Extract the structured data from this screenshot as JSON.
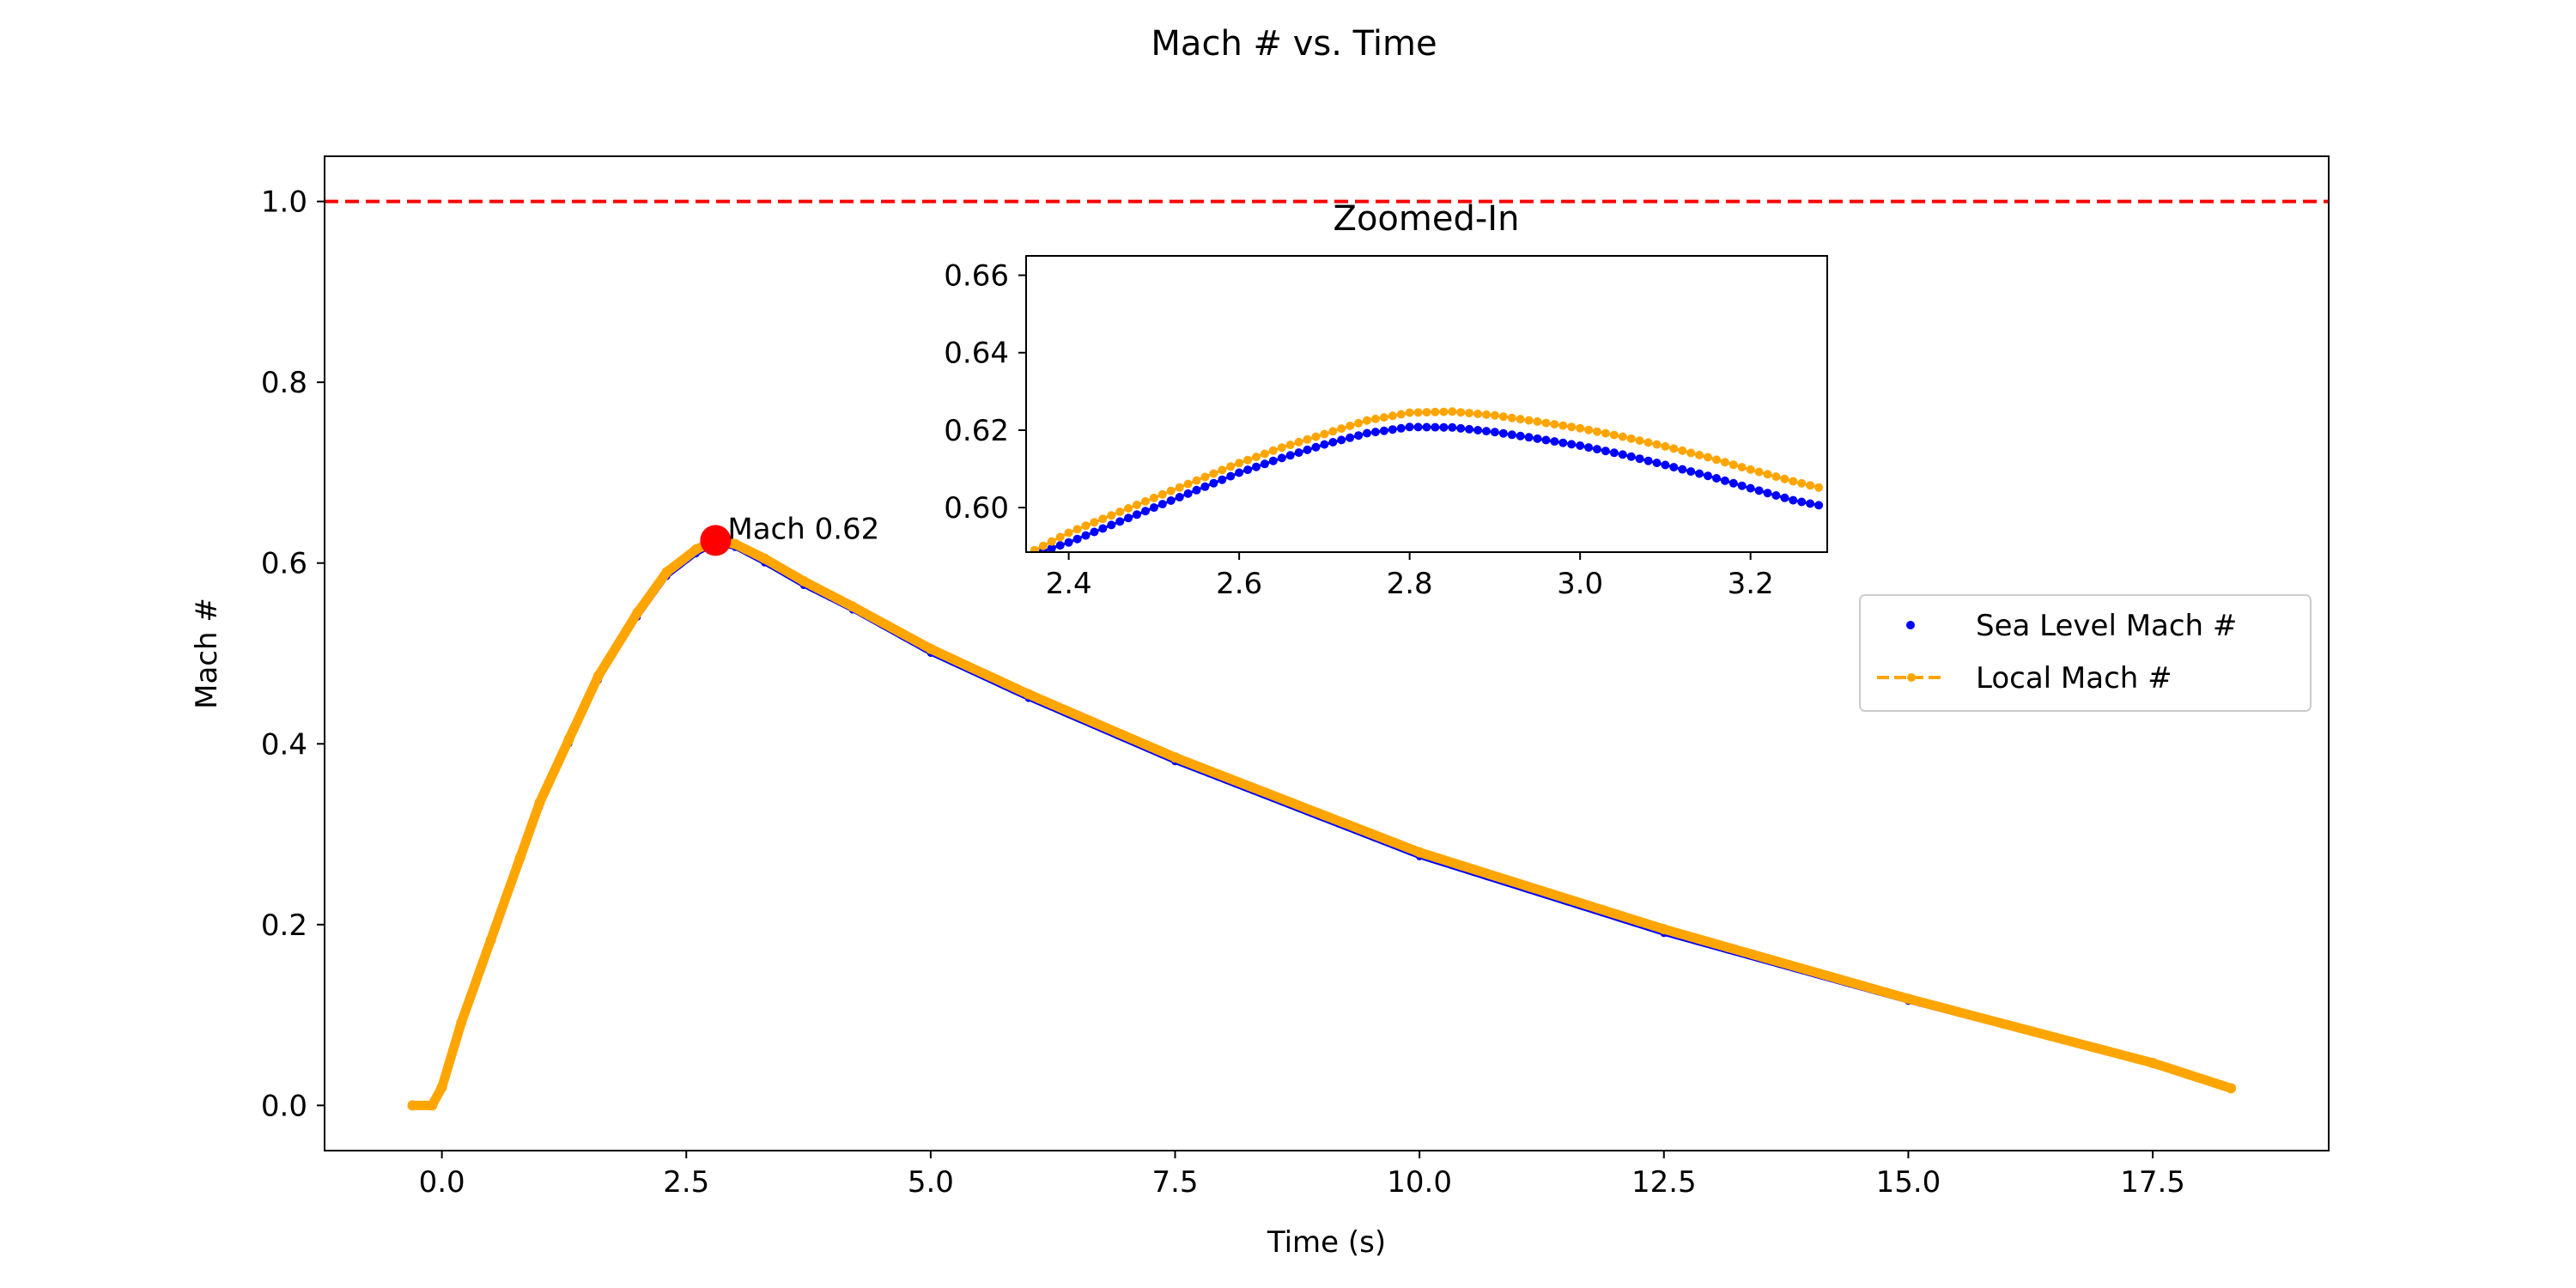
{
  "chart_data": {
    "type": "line",
    "title": "Mach # vs. Time",
    "xlabel": "Time (s)",
    "ylabel": "Mach #",
    "xlim": [
      -1.2,
      19.3
    ],
    "ylim": [
      -0.05,
      1.05
    ],
    "xticks": [
      "0.0",
      "2.5",
      "5.0",
      "7.5",
      "10.0",
      "12.5",
      "15.0",
      "17.5"
    ],
    "yticks": [
      "0.0",
      "0.2",
      "0.4",
      "0.6",
      "0.8",
      "1.0"
    ],
    "grid": false,
    "legend_position": "center-right",
    "reference_line": {
      "y": 1.0,
      "color": "#ff0000",
      "style": "dashed"
    },
    "series": [
      {
        "name": "Sea Level Mach #",
        "color": "#0000ff",
        "style": "dots",
        "x": [
          -0.3,
          -0.1,
          0.0,
          0.2,
          0.5,
          0.8,
          1.0,
          1.3,
          1.6,
          2.0,
          2.3,
          2.6,
          2.8,
          3.0,
          3.3,
          3.7,
          4.2,
          5.0,
          6.0,
          7.5,
          10.0,
          12.5,
          15.0,
          17.5,
          18.3
        ],
        "y": [
          0.0,
          0.0,
          0.02,
          0.09,
          0.18,
          0.27,
          0.33,
          0.4,
          0.47,
          0.54,
          0.585,
          0.61,
          0.621,
          0.617,
          0.6,
          0.575,
          0.548,
          0.5,
          0.45,
          0.38,
          0.275,
          0.19,
          0.115,
          0.045,
          0.018
        ]
      },
      {
        "name": "Local Mach #",
        "color": "#ffa500",
        "style": "dashed-dots",
        "x": [
          -0.3,
          -0.1,
          0.0,
          0.2,
          0.5,
          0.8,
          1.0,
          1.3,
          1.6,
          2.0,
          2.3,
          2.6,
          2.8,
          3.0,
          3.3,
          3.7,
          4.2,
          5.0,
          6.0,
          7.5,
          10.0,
          12.5,
          15.0,
          17.5,
          18.3
        ],
        "y": [
          0.0,
          0.0,
          0.02,
          0.092,
          0.183,
          0.274,
          0.335,
          0.405,
          0.475,
          0.545,
          0.59,
          0.615,
          0.625,
          0.621,
          0.605,
          0.58,
          0.552,
          0.505,
          0.455,
          0.385,
          0.28,
          0.195,
          0.118,
          0.047,
          0.019
        ]
      }
    ],
    "annotation": {
      "x": 2.8,
      "y": 0.625,
      "label": "Mach 0.62",
      "color": "#ff0000"
    },
    "inset": {
      "title": "Zoomed-In",
      "xlim": [
        2.35,
        3.29
      ],
      "ylim": [
        0.5885,
        0.665
      ],
      "xticks": [
        "2.4",
        "2.6",
        "2.8",
        "3.0",
        "3.2"
      ],
      "yticks": [
        "0.60",
        "0.62",
        "0.64",
        "0.66"
      ],
      "series": [
        {
          "name": "Sea Level Mach #",
          "x": [
            2.36,
            2.4,
            2.45,
            2.5,
            2.55,
            2.6,
            2.65,
            2.7,
            2.75,
            2.8,
            2.85,
            2.9,
            2.95,
            3.0,
            3.05,
            3.1,
            3.15,
            3.2,
            3.25,
            3.28
          ],
          "y": [
            0.588,
            0.591,
            0.5955,
            0.6,
            0.6045,
            0.609,
            0.6128,
            0.6163,
            0.6192,
            0.6208,
            0.6207,
            0.6195,
            0.6178,
            0.616,
            0.6137,
            0.611,
            0.6082,
            0.605,
            0.6019,
            0.6006
          ]
        },
        {
          "name": "Local Mach #",
          "x": [
            2.36,
            2.4,
            2.45,
            2.5,
            2.55,
            2.6,
            2.65,
            2.7,
            2.75,
            2.8,
            2.85,
            2.9,
            2.95,
            3.0,
            3.05,
            3.1,
            3.15,
            3.2,
            3.25,
            3.28
          ],
          "y": [
            0.589,
            0.5935,
            0.598,
            0.6025,
            0.607,
            0.6115,
            0.6155,
            0.619,
            0.6225,
            0.6245,
            0.6248,
            0.6238,
            0.6222,
            0.6205,
            0.6183,
            0.6158,
            0.613,
            0.6098,
            0.6068,
            0.6052
          ]
        }
      ]
    }
  }
}
